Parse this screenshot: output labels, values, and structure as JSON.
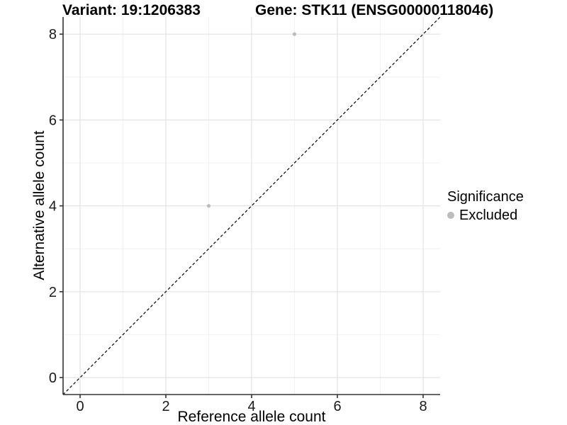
{
  "chart_data": {
    "type": "scatter",
    "titles": [
      "Variant: 19:1206383",
      "Gene: STK11 (ENSG00000118046)"
    ],
    "xlabel": "Reference allele count",
    "ylabel": "Alternative allele count",
    "xlim": [
      -0.4,
      8.4
    ],
    "ylim": [
      -0.4,
      8.4
    ],
    "xticks": [
      0,
      2,
      4,
      6,
      8
    ],
    "yticks": [
      0,
      2,
      4,
      6,
      8
    ],
    "minor_xticks": [
      1,
      3,
      5,
      7
    ],
    "minor_yticks": [
      1,
      3,
      5,
      7
    ],
    "grid": true,
    "series": [
      {
        "name": "Excluded",
        "color": "#bcbcbc",
        "points": [
          {
            "x": 5,
            "y": 8
          },
          {
            "x": 3,
            "y": 4
          }
        ]
      }
    ],
    "reference_line": {
      "type": "identity",
      "slope": 1,
      "intercept": 0,
      "style": "dashed",
      "color": "#000000"
    },
    "legend": {
      "title": "Significance",
      "position": "right"
    },
    "colors": {
      "major_grid": "#e3e3e3",
      "minor_grid": "#efefef",
      "axis": "#333333",
      "tick_label": "#1a1a1a"
    }
  }
}
